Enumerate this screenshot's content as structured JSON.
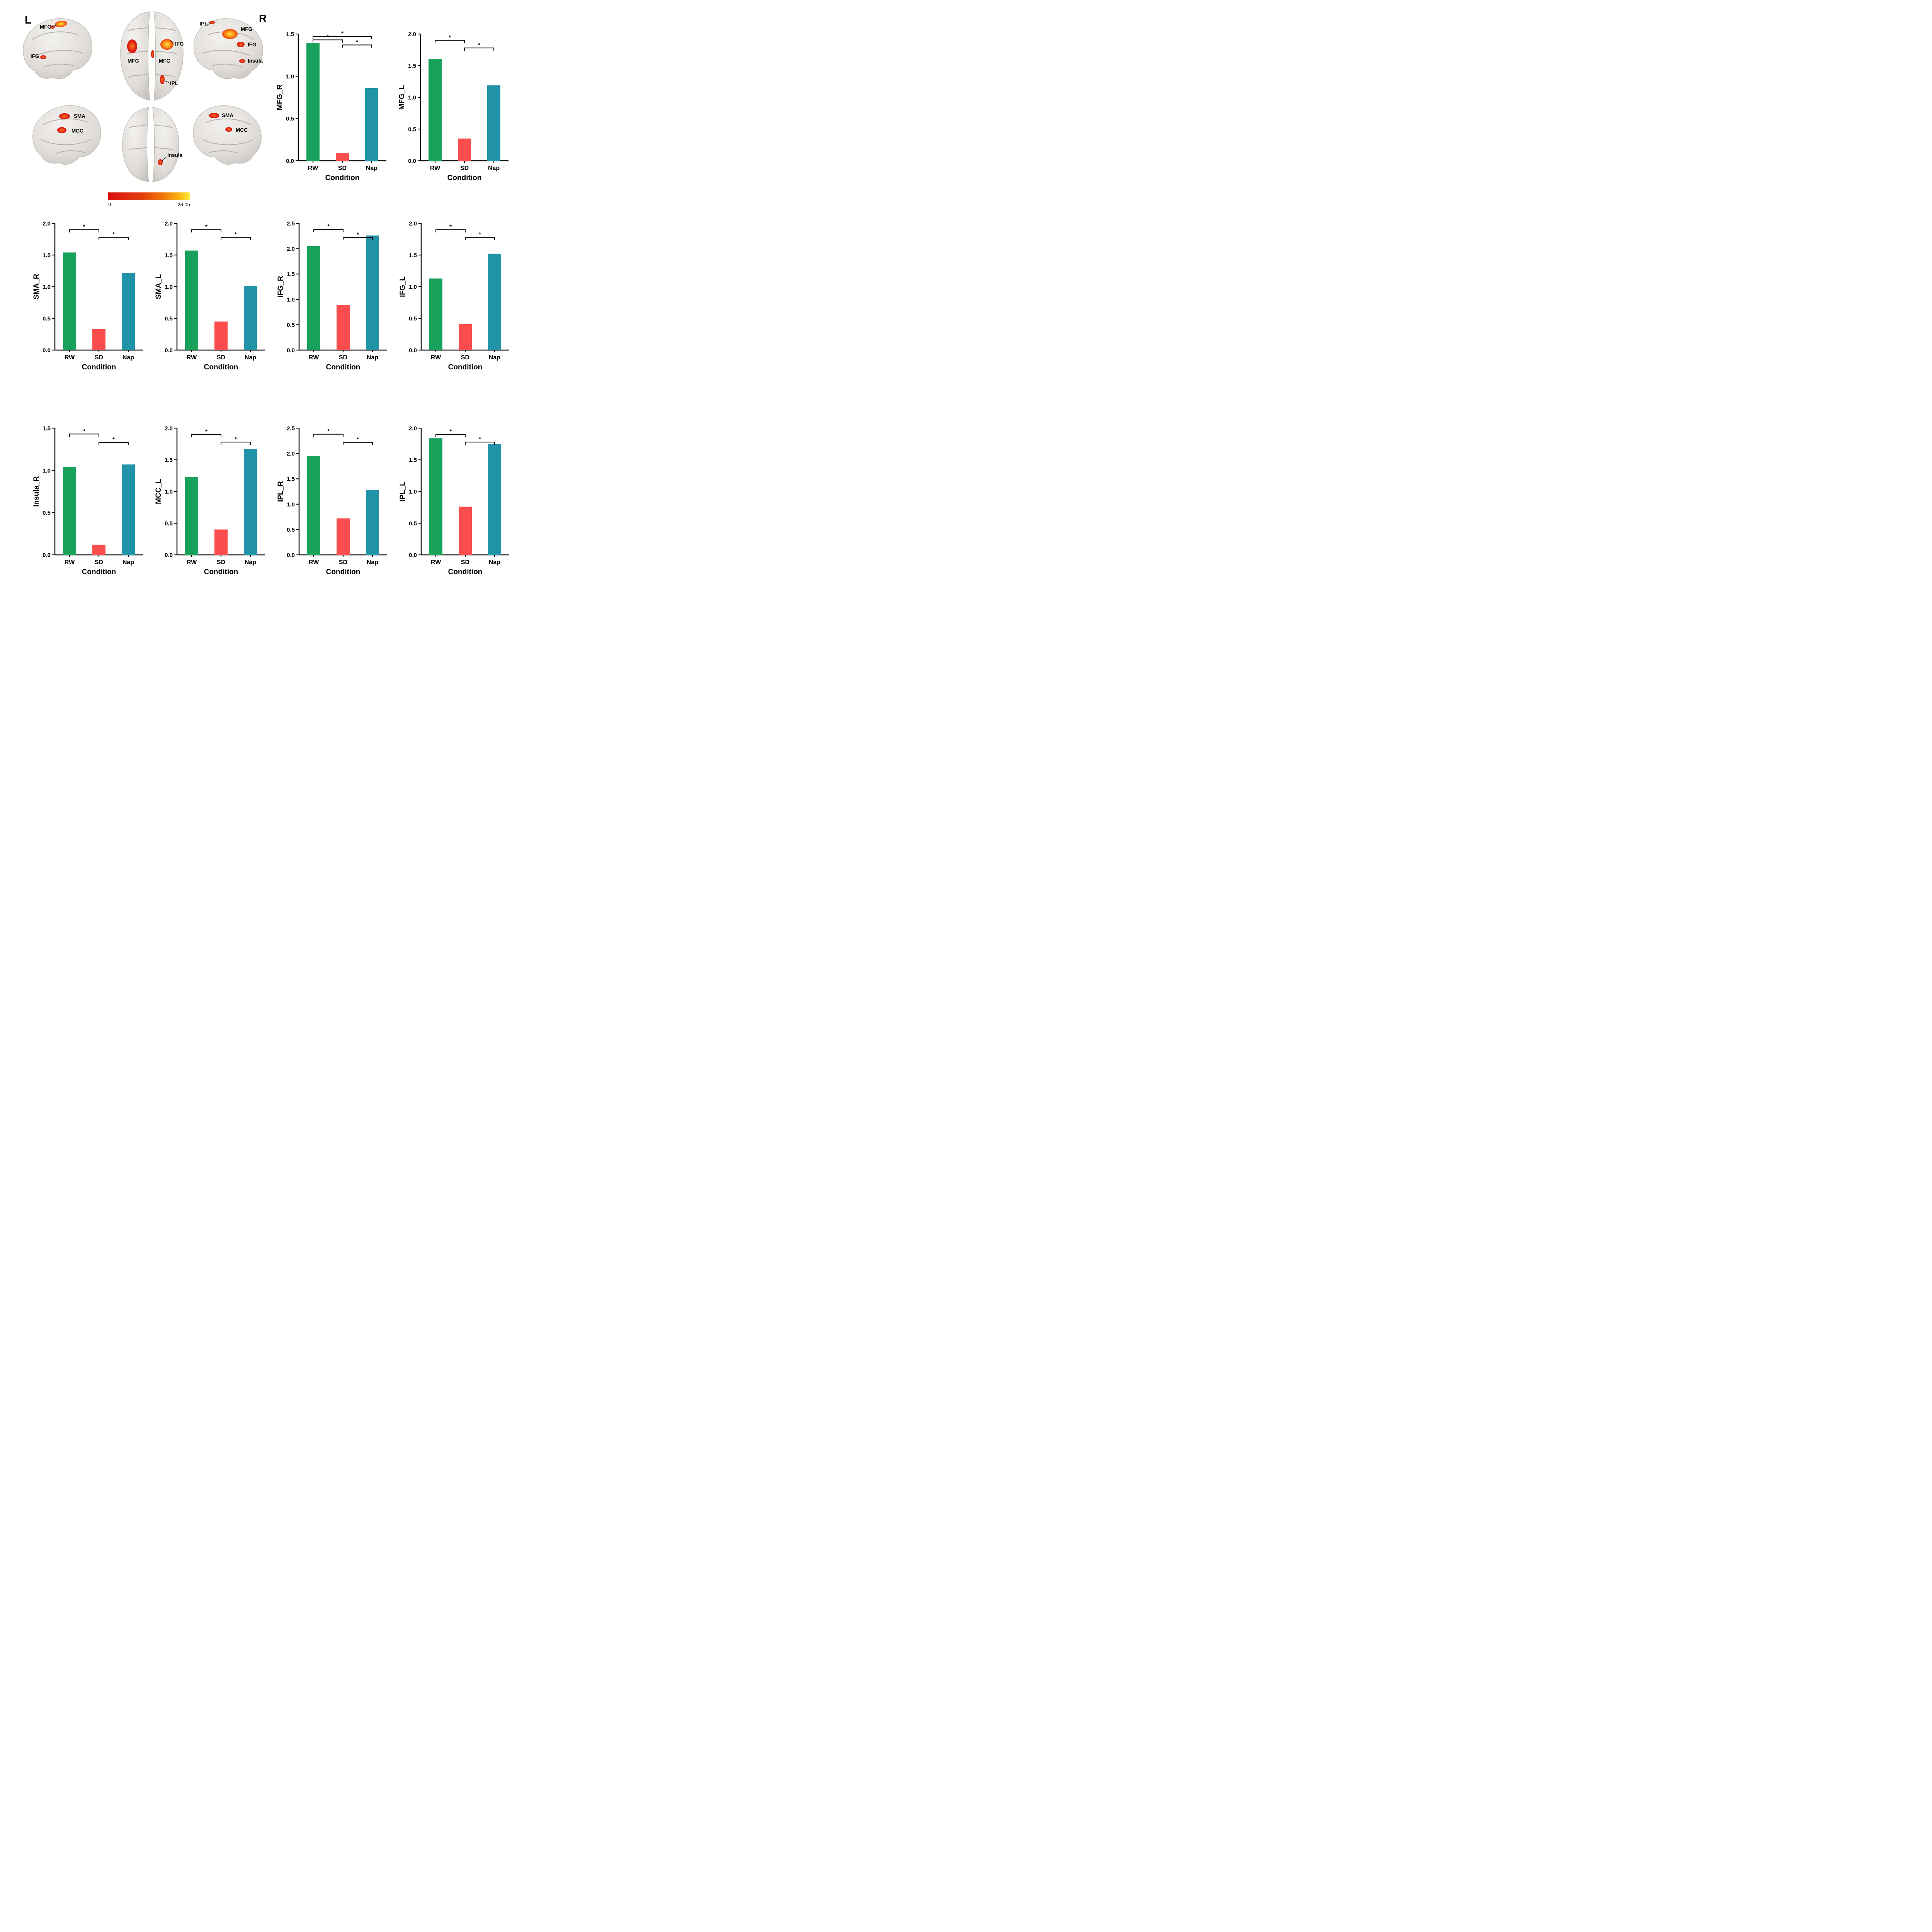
{
  "brain_panel": {
    "left_letter": "L",
    "right_letter": "R",
    "labels": [
      {
        "id": "lat-left-mfg",
        "text": "MFG"
      },
      {
        "id": "lat-left-ifg",
        "text": "IFG"
      },
      {
        "id": "axial-top-ifg",
        "text": "IFG"
      },
      {
        "id": "axial-top-mfg-left",
        "text": "MFG"
      },
      {
        "id": "axial-top-mfg-right",
        "text": "MFG"
      },
      {
        "id": "axial-top-ipl",
        "text": "IPL"
      },
      {
        "id": "lat-right-ipl",
        "text": "IPL"
      },
      {
        "id": "lat-right-mfg",
        "text": "MFG"
      },
      {
        "id": "lat-right-ifg",
        "text": "IFG"
      },
      {
        "id": "lat-right-insula",
        "text": "Insula"
      },
      {
        "id": "med-left-sma",
        "text": "SMA"
      },
      {
        "id": "med-left-mcc",
        "text": "MCC"
      },
      {
        "id": "axial-bottom-insula",
        "text": "Insula"
      },
      {
        "id": "med-right-sma",
        "text": "SMA"
      },
      {
        "id": "med-right-mcc",
        "text": "MCC"
      }
    ],
    "colorbar": {
      "min_label": "9",
      "max_label": "26.05"
    }
  },
  "colors": {
    "rw": "#17a15a",
    "sd": "#fb4d4d",
    "nap": "#2093a8",
    "axis": "#000000"
  },
  "chart_data": [
    {
      "type": "bar",
      "ylabel": "MFG_R",
      "xlabel": "Condition",
      "categories": [
        "RW",
        "SD",
        "Nap"
      ],
      "values": [
        1.39,
        0.09,
        0.86
      ],
      "series_colors": [
        "rw",
        "sd",
        "nap"
      ],
      "ylim": [
        0,
        1.5
      ],
      "ystep": 0.5,
      "brackets": [
        {
          "from": 0,
          "to": 1,
          "y": 1.43,
          "label": "*"
        },
        {
          "from": 0,
          "to": 2,
          "y": 1.47,
          "label": "*"
        },
        {
          "from": 1,
          "to": 2,
          "y": 1.37,
          "label": "*"
        }
      ]
    },
    {
      "type": "bar",
      "ylabel": "MFG_L",
      "xlabel": "Condition",
      "categories": [
        "RW",
        "SD",
        "Nap"
      ],
      "values": [
        1.61,
        0.35,
        1.19
      ],
      "series_colors": [
        "rw",
        "sd",
        "nap"
      ],
      "ylim": [
        0,
        2.0
      ],
      "ystep": 0.5,
      "brackets": [
        {
          "from": 0,
          "to": 1,
          "y": 1.9,
          "label": "*"
        },
        {
          "from": 1,
          "to": 2,
          "y": 1.78,
          "label": "*"
        }
      ]
    },
    {
      "type": "bar",
      "ylabel": "SMA_R",
      "xlabel": "Condition",
      "categories": [
        "RW",
        "SD",
        "Nap"
      ],
      "values": [
        1.54,
        0.33,
        1.22
      ],
      "series_colors": [
        "rw",
        "sd",
        "nap"
      ],
      "ylim": [
        0,
        2.0
      ],
      "ystep": 0.5,
      "brackets": [
        {
          "from": 0,
          "to": 1,
          "y": 1.9,
          "label": "*"
        },
        {
          "from": 1,
          "to": 2,
          "y": 1.78,
          "label": "*"
        }
      ]
    },
    {
      "type": "bar",
      "ylabel": "SMA_L",
      "xlabel": "Condition",
      "categories": [
        "RW",
        "SD",
        "Nap"
      ],
      "values": [
        1.57,
        0.45,
        1.01
      ],
      "series_colors": [
        "rw",
        "sd",
        "nap"
      ],
      "ylim": [
        0,
        2.0
      ],
      "ystep": 0.5,
      "brackets": [
        {
          "from": 0,
          "to": 1,
          "y": 1.9,
          "label": "*"
        },
        {
          "from": 1,
          "to": 2,
          "y": 1.78,
          "label": "*"
        }
      ]
    },
    {
      "type": "bar",
      "ylabel": "IFG_R",
      "xlabel": "Condition",
      "categories": [
        "RW",
        "SD",
        "Nap"
      ],
      "values": [
        2.05,
        0.89,
        2.26
      ],
      "series_colors": [
        "rw",
        "sd",
        "nap"
      ],
      "ylim": [
        0,
        2.5
      ],
      "ystep": 0.5,
      "brackets": [
        {
          "from": 0,
          "to": 1,
          "y": 2.38,
          "label": "*"
        },
        {
          "from": 1,
          "to": 2,
          "y": 2.22,
          "label": "*"
        }
      ]
    },
    {
      "type": "bar",
      "ylabel": "IFG_L",
      "xlabel": "Condition",
      "categories": [
        "RW",
        "SD",
        "Nap"
      ],
      "values": [
        1.13,
        0.41,
        1.52
      ],
      "series_colors": [
        "rw",
        "sd",
        "nap"
      ],
      "ylim": [
        0,
        2.0
      ],
      "ystep": 0.5,
      "brackets": [
        {
          "from": 0,
          "to": 1,
          "y": 1.9,
          "label": "*"
        },
        {
          "from": 1,
          "to": 2,
          "y": 1.78,
          "label": "*"
        }
      ]
    },
    {
      "type": "bar",
      "ylabel": "Insula_R",
      "xlabel": "Condition",
      "categories": [
        "RW",
        "SD",
        "Nap"
      ],
      "values": [
        1.04,
        0.12,
        1.07
      ],
      "series_colors": [
        "rw",
        "sd",
        "nap"
      ],
      "ylim": [
        0,
        1.5
      ],
      "ystep": 0.5,
      "brackets": [
        {
          "from": 0,
          "to": 1,
          "y": 1.43,
          "label": "*"
        },
        {
          "from": 1,
          "to": 2,
          "y": 1.33,
          "label": "*"
        }
      ]
    },
    {
      "type": "bar",
      "ylabel": "MCC_L",
      "xlabel": "Condition",
      "categories": [
        "RW",
        "SD",
        "Nap"
      ],
      "values": [
        1.23,
        0.4,
        1.67
      ],
      "series_colors": [
        "rw",
        "sd",
        "nap"
      ],
      "ylim": [
        0,
        2.0
      ],
      "ystep": 0.5,
      "brackets": [
        {
          "from": 0,
          "to": 1,
          "y": 1.9,
          "label": "*"
        },
        {
          "from": 1,
          "to": 2,
          "y": 1.78,
          "label": "*"
        }
      ]
    },
    {
      "type": "bar",
      "ylabel": "IPL_R",
      "xlabel": "Condition",
      "categories": [
        "RW",
        "SD",
        "Nap"
      ],
      "values": [
        1.95,
        0.72,
        1.28
      ],
      "series_colors": [
        "rw",
        "sd",
        "nap"
      ],
      "ylim": [
        0,
        2.5
      ],
      "ystep": 0.5,
      "brackets": [
        {
          "from": 0,
          "to": 1,
          "y": 2.38,
          "label": "*"
        },
        {
          "from": 1,
          "to": 2,
          "y": 2.22,
          "label": "*"
        }
      ]
    },
    {
      "type": "bar",
      "ylabel": "IPL_L",
      "xlabel": "Condition",
      "categories": [
        "RW",
        "SD",
        "Nap"
      ],
      "values": [
        1.84,
        0.76,
        1.75
      ],
      "series_colors": [
        "rw",
        "sd",
        "nap"
      ],
      "ylim": [
        0,
        2.0
      ],
      "ystep": 0.5,
      "brackets": [
        {
          "from": 0,
          "to": 1,
          "y": 1.9,
          "label": "*"
        },
        {
          "from": 1,
          "to": 2,
          "y": 1.78,
          "label": "*"
        }
      ]
    }
  ]
}
